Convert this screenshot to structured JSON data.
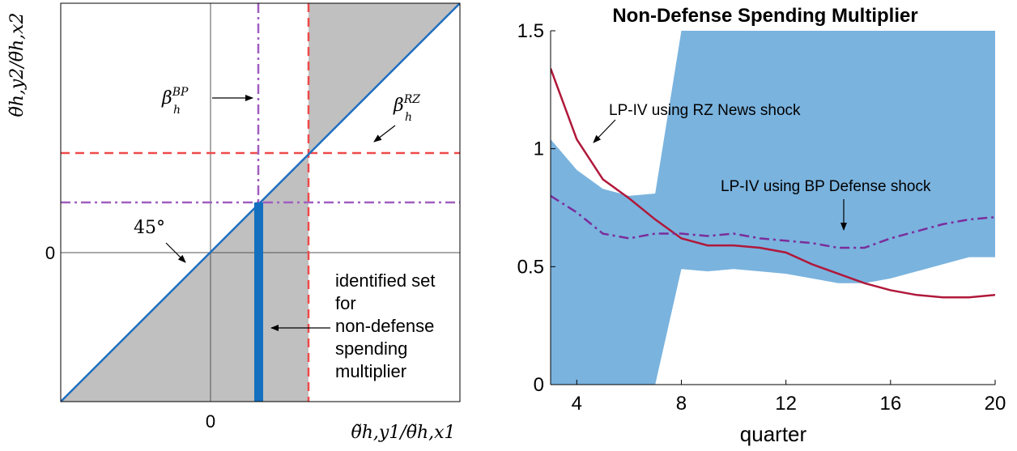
{
  "left_panel": {
    "xlabel": "θ̃h,y1/θ̃h,x1",
    "ylabel": "θ̃h,y2/θ̃h,x2",
    "x_tick_zero": "0",
    "y_tick_zero": "0",
    "label_45": "45°",
    "beta_bp": "β",
    "beta_bp_sup": "BP",
    "beta_bp_sub": "h",
    "beta_rz": "β",
    "beta_rz_sup": "RZ",
    "beta_rz_sub": "h",
    "identified_set_lines": [
      "identified set",
      "for",
      "non-defense",
      "spending",
      "multiplier"
    ],
    "colors": {
      "shade": "#c0c0c0",
      "diagonal": "#1f6fc0",
      "identified_bar": "#1470bf",
      "rz_dashed": "#ef4a4a",
      "bp_dashdot": "#a05ec0"
    }
  },
  "chart_data": {
    "type": "line",
    "title": "Non-Defense Spending Multiplier",
    "xlabel": "quarter",
    "ylabel": "",
    "xlim": [
      3,
      20
    ],
    "ylim": [
      0,
      1.5
    ],
    "x_ticks": [
      4,
      8,
      12,
      16,
      20
    ],
    "y_ticks": [
      0,
      0.5,
      1,
      1.5
    ],
    "y_tick_labels": [
      "0",
      "0.5",
      "1",
      "1.5"
    ],
    "grid": false,
    "band": {
      "color": "#7ab3de",
      "x": [
        3,
        4,
        5,
        6,
        7,
        8,
        9,
        10,
        11,
        12,
        13,
        14,
        15,
        16,
        17,
        18,
        19,
        20
      ],
      "lower": [
        0,
        0,
        0,
        0,
        0,
        0.49,
        0.48,
        0.49,
        0.48,
        0.47,
        0.45,
        0.43,
        0.43,
        0.45,
        0.48,
        0.51,
        0.54,
        0.54
      ],
      "upper": [
        1.04,
        0.91,
        0.83,
        0.8,
        0.81,
        1.5,
        1.5,
        1.5,
        1.5,
        1.5,
        1.5,
        1.5,
        1.5,
        1.5,
        1.5,
        1.5,
        1.5,
        1.5
      ]
    },
    "series": [
      {
        "color": "#b0183a",
        "style": "solid",
        "x": [
          3,
          4,
          5,
          6,
          7,
          8,
          9,
          10,
          11,
          12,
          13,
          14,
          15,
          16,
          17,
          18,
          19,
          20
        ],
        "values": [
          1.34,
          1.04,
          0.87,
          0.79,
          0.7,
          0.62,
          0.59,
          0.59,
          0.58,
          0.56,
          0.51,
          0.47,
          0.43,
          0.4,
          0.38,
          0.37,
          0.37,
          0.38
        ]
      },
      {
        "color": "#7b2d9b",
        "style": "dashdot",
        "x": [
          3,
          4,
          5,
          6,
          7,
          8,
          9,
          10,
          11,
          12,
          13,
          14,
          15,
          16,
          17,
          18,
          19,
          20
        ],
        "values": [
          0.8,
          0.73,
          0.64,
          0.62,
          0.64,
          0.64,
          0.63,
          0.64,
          0.62,
          0.61,
          0.6,
          0.58,
          0.58,
          0.62,
          0.65,
          0.68,
          0.7,
          0.71
        ]
      }
    ],
    "annotations": [
      {
        "text": "LP-IV using RZ News shock",
        "target_x": 4.5,
        "target_y": 1.04
      },
      {
        "text": "LP-IV using BP Defense shock",
        "target_x": 14.2,
        "target_y": 0.65
      }
    ]
  }
}
